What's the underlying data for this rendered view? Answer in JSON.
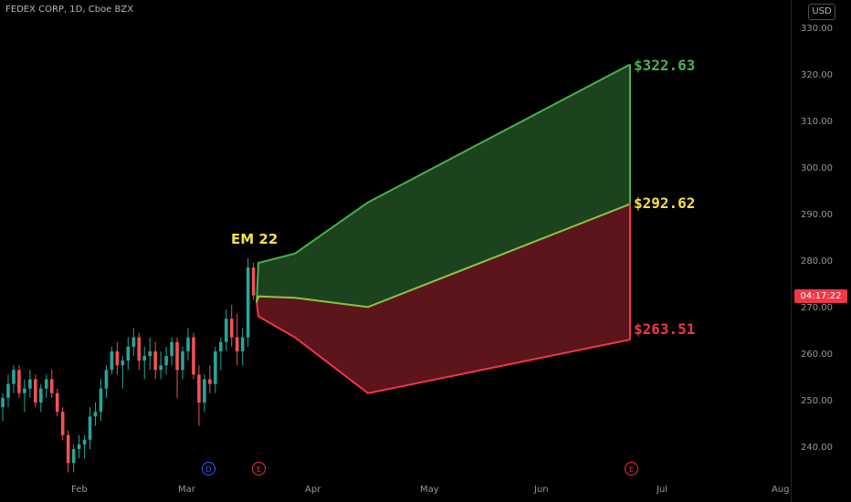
{
  "header": {
    "title": "FEDEX CORP, 1D, Cboe BZX",
    "currency": "USD"
  },
  "countdown": "04:17:22",
  "annotations": {
    "em_label": "EM 22",
    "upper": "$322.63",
    "middle": "$292.62",
    "lower": "$263.51"
  },
  "events": [
    {
      "label": "D",
      "color": "#2962ff"
    },
    {
      "label": "E",
      "color": "#f23645"
    },
    {
      "label": "E",
      "color": "#f23645"
    }
  ],
  "chart_data": {
    "type": "candlestick",
    "y_axis": {
      "min": 233,
      "max": 335,
      "ticks": [
        "330.00",
        "320.00",
        "310.00",
        "300.00",
        "290.00",
        "280.00",
        "270.00",
        "260.00",
        "250.00",
        "240.00"
      ]
    },
    "x_axis": {
      "labels": [
        "Feb",
        "Mar",
        "Apr",
        "May",
        "Jun",
        "Jul",
        "Aug"
      ]
    },
    "colors": {
      "up": "#26a69a",
      "down": "#ef5350",
      "upper_band": "#4caf50",
      "lower_band": "#f23645",
      "middle_band": "#8bc34a"
    },
    "candles": [
      [
        249,
        252,
        246,
        251
      ],
      [
        251,
        256,
        249,
        254
      ],
      [
        254,
        258,
        252,
        257
      ],
      [
        257,
        258,
        251,
        252
      ],
      [
        252,
        255,
        248,
        253
      ],
      [
        253,
        257,
        251,
        255
      ],
      [
        255,
        256,
        249,
        250
      ],
      [
        250,
        254,
        248,
        253
      ],
      [
        253,
        256,
        251,
        255
      ],
      [
        255,
        257,
        251,
        252
      ],
      [
        252,
        253,
        247,
        248
      ],
      [
        248,
        249,
        242,
        243
      ],
      [
        243,
        244,
        235,
        237
      ],
      [
        237,
        241,
        235,
        240
      ],
      [
        240,
        243,
        238,
        241
      ],
      [
        241,
        243,
        238,
        242
      ],
      [
        242,
        249,
        240,
        247
      ],
      [
        247,
        250,
        245,
        248
      ],
      [
        248,
        255,
        246,
        253
      ],
      [
        253,
        258,
        251,
        257
      ],
      [
        257,
        262,
        256,
        261
      ],
      [
        261,
        263,
        256,
        258
      ],
      [
        258,
        260,
        253,
        259
      ],
      [
        259,
        264,
        257,
        262
      ],
      [
        262,
        266,
        260,
        264
      ],
      [
        264,
        265,
        257,
        259
      ],
      [
        259,
        262,
        255,
        260
      ],
      [
        260,
        264,
        257,
        261
      ],
      [
        261,
        263,
        255,
        257
      ],
      [
        257,
        261,
        255,
        258
      ],
      [
        258,
        262,
        256,
        260
      ],
      [
        260,
        264,
        258,
        263
      ],
      [
        263,
        264,
        251,
        257
      ],
      [
        257,
        262,
        255,
        261
      ],
      [
        261,
        266,
        259,
        264
      ],
      [
        264,
        265,
        255,
        256
      ],
      [
        256,
        258,
        245,
        250
      ],
      [
        250,
        256,
        248,
        255
      ],
      [
        255,
        258,
        252,
        254
      ],
      [
        254,
        262,
        252,
        261
      ],
      [
        261,
        264,
        257,
        263
      ],
      [
        263,
        270,
        261,
        268
      ],
      [
        268,
        271,
        262,
        264
      ],
      [
        264,
        269,
        258,
        261
      ],
      [
        261,
        266,
        258,
        264
      ],
      [
        264,
        281,
        262,
        279
      ],
      [
        279,
        280,
        272,
        273
      ]
    ],
    "expected_move": {
      "upper": [
        [
          281,
          271.5
        ],
        [
          283,
          280
        ],
        [
          323,
          282
        ],
        [
          403,
          293
        ],
        [
          690,
          322.63
        ]
      ],
      "middle": [
        [
          281,
          271.5
        ],
        [
          283,
          272.8
        ],
        [
          323,
          272.5
        ],
        [
          403,
          270.5
        ],
        [
          690,
          292.62
        ]
      ],
      "lower": [
        [
          281,
          271.5
        ],
        [
          283,
          268.5
        ],
        [
          323,
          264
        ],
        [
          403,
          252
        ],
        [
          690,
          263.51
        ]
      ]
    }
  }
}
